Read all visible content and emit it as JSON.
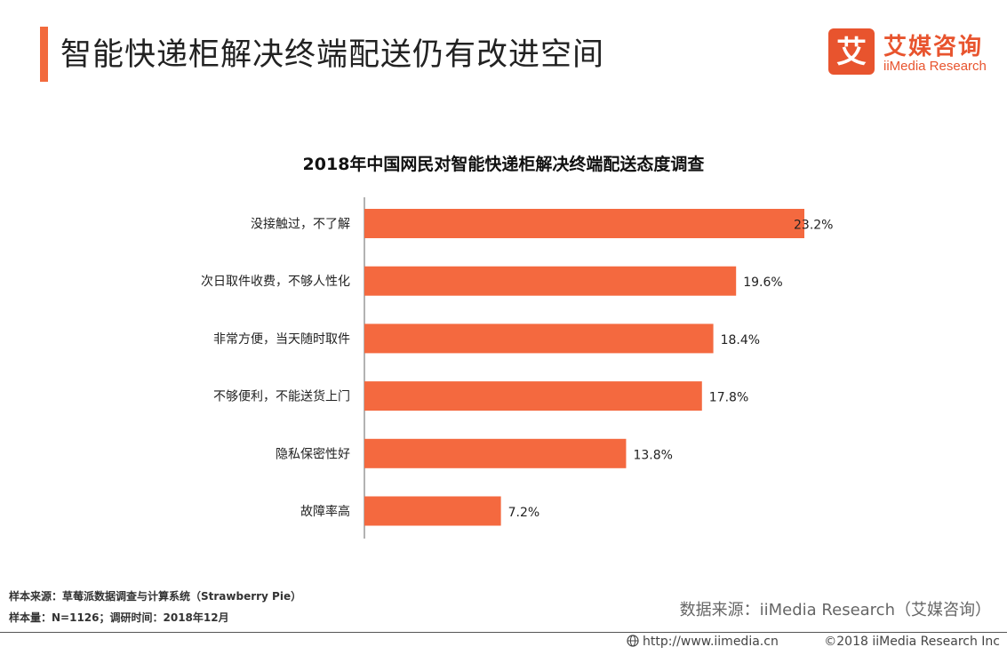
{
  "page": {
    "title": "智能快递柜解决终端配送仍有改进空间"
  },
  "logo": {
    "glyph": "艾",
    "cn": "艾媒咨询",
    "en": "iiMedia Research",
    "color": "#e8542e"
  },
  "chart_data": {
    "type": "bar",
    "orientation": "horizontal",
    "title": "2018年中国网民对智能快递柜解决终端配送态度调查",
    "categories": [
      "没接触过，不了解",
      "次日取件收费，不够人性化",
      "非常方便，当天随时取件",
      "不够便利，不能送货上门",
      "隐私保密性好",
      "故障率高"
    ],
    "values": [
      23.2,
      19.6,
      18.4,
      17.8,
      13.8,
      7.2
    ],
    "value_labels": [
      "23.2%",
      "19.6%",
      "18.4%",
      "17.8%",
      "13.8%",
      "7.2%"
    ],
    "unit": "%",
    "xlim": [
      0,
      25
    ],
    "bar_color": "#f4693f",
    "grid": false,
    "legend": "none"
  },
  "footer": {
    "sample_source": "样本来源：草莓派数据调查与计算系统（Strawberry Pie）",
    "sample_size": "样本量：N=1126；调研时间：2018年12月",
    "data_source": "数据来源：iiMedia Research（艾媒咨询）",
    "url": "http://www.iimedia.cn",
    "copyright": "©2018  iiMedia Research  Inc"
  }
}
